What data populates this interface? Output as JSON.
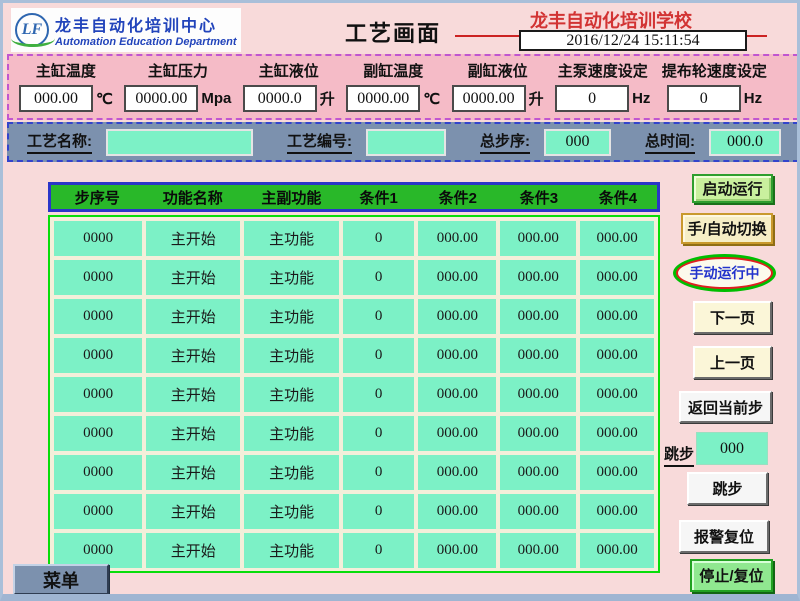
{
  "header": {
    "logo_initials": "LF",
    "org_cn": "龙丰自动化培训中心",
    "org_en": "Automation Education Department",
    "page_title": "工艺画面",
    "school_name": "龙丰自动化培训学校",
    "datetime": "2016/12/24 15:11:54"
  },
  "process_fields": [
    {
      "label": "主缸温度",
      "value": "000.00",
      "unit": "℃",
      "settable": false
    },
    {
      "label": "主缸压力",
      "value": "0000.00",
      "unit": "Mpa",
      "settable": false
    },
    {
      "label": "主缸液位",
      "value": "0000.0",
      "unit": "升",
      "settable": false
    },
    {
      "label": "副缸温度",
      "value": "0000.00",
      "unit": "℃",
      "settable": false
    },
    {
      "label": "副缸液位",
      "value": "0000.00",
      "unit": "升",
      "settable": false
    },
    {
      "label": "主泵速度设定",
      "value": "0",
      "unit": "Hz",
      "settable": true
    },
    {
      "label": "提布轮速度设定",
      "value": "0",
      "unit": "Hz",
      "settable": true
    }
  ],
  "recipe_bar": {
    "name_label": "工艺名称:",
    "name_value": "",
    "number_label": "工艺编号:",
    "number_value": "",
    "steps_label": "总步序:",
    "steps_value": "000",
    "time_label": "总时间:",
    "time_value": "000.0"
  },
  "step_table": {
    "headers": [
      "步序号",
      "功能名称",
      "主副功能",
      "条件1",
      "条件2",
      "条件3",
      "条件4"
    ],
    "rows": [
      [
        "0000",
        "主开始",
        "主功能",
        "0",
        "000.00",
        "000.00",
        "000.00"
      ],
      [
        "0000",
        "主开始",
        "主功能",
        "0",
        "000.00",
        "000.00",
        "000.00"
      ],
      [
        "0000",
        "主开始",
        "主功能",
        "0",
        "000.00",
        "000.00",
        "000.00"
      ],
      [
        "0000",
        "主开始",
        "主功能",
        "0",
        "000.00",
        "000.00",
        "000.00"
      ],
      [
        "0000",
        "主开始",
        "主功能",
        "0",
        "000.00",
        "000.00",
        "000.00"
      ],
      [
        "0000",
        "主开始",
        "主功能",
        "0",
        "000.00",
        "000.00",
        "000.00"
      ],
      [
        "0000",
        "主开始",
        "主功能",
        "0",
        "000.00",
        "000.00",
        "000.00"
      ],
      [
        "0000",
        "主开始",
        "主功能",
        "0",
        "000.00",
        "000.00",
        "000.00"
      ],
      [
        "0000",
        "主开始",
        "主功能",
        "0",
        "000.00",
        "000.00",
        "000.00"
      ]
    ]
  },
  "controls": {
    "start": "启动运行",
    "mode_switch": "手/自动切换",
    "mode_status": "手动运行中",
    "next_page": "下一页",
    "prev_page": "上一页",
    "return_current": "返回当前步",
    "jump_label": "跳步",
    "jump_value": "000",
    "jump_button": "跳步",
    "alarm_reset": "报警复位",
    "stop_reset": "停止/复位",
    "menu": "菜单"
  },
  "colors": {
    "header_green": "#29B829",
    "table_border_blue": "#2B35C9",
    "body_border_green": "#09DD09",
    "mint": "#7CF1C6",
    "slate": "#7C91AE",
    "band_pink": "#F5BBC7",
    "alarm_red": "#CC2222"
  }
}
